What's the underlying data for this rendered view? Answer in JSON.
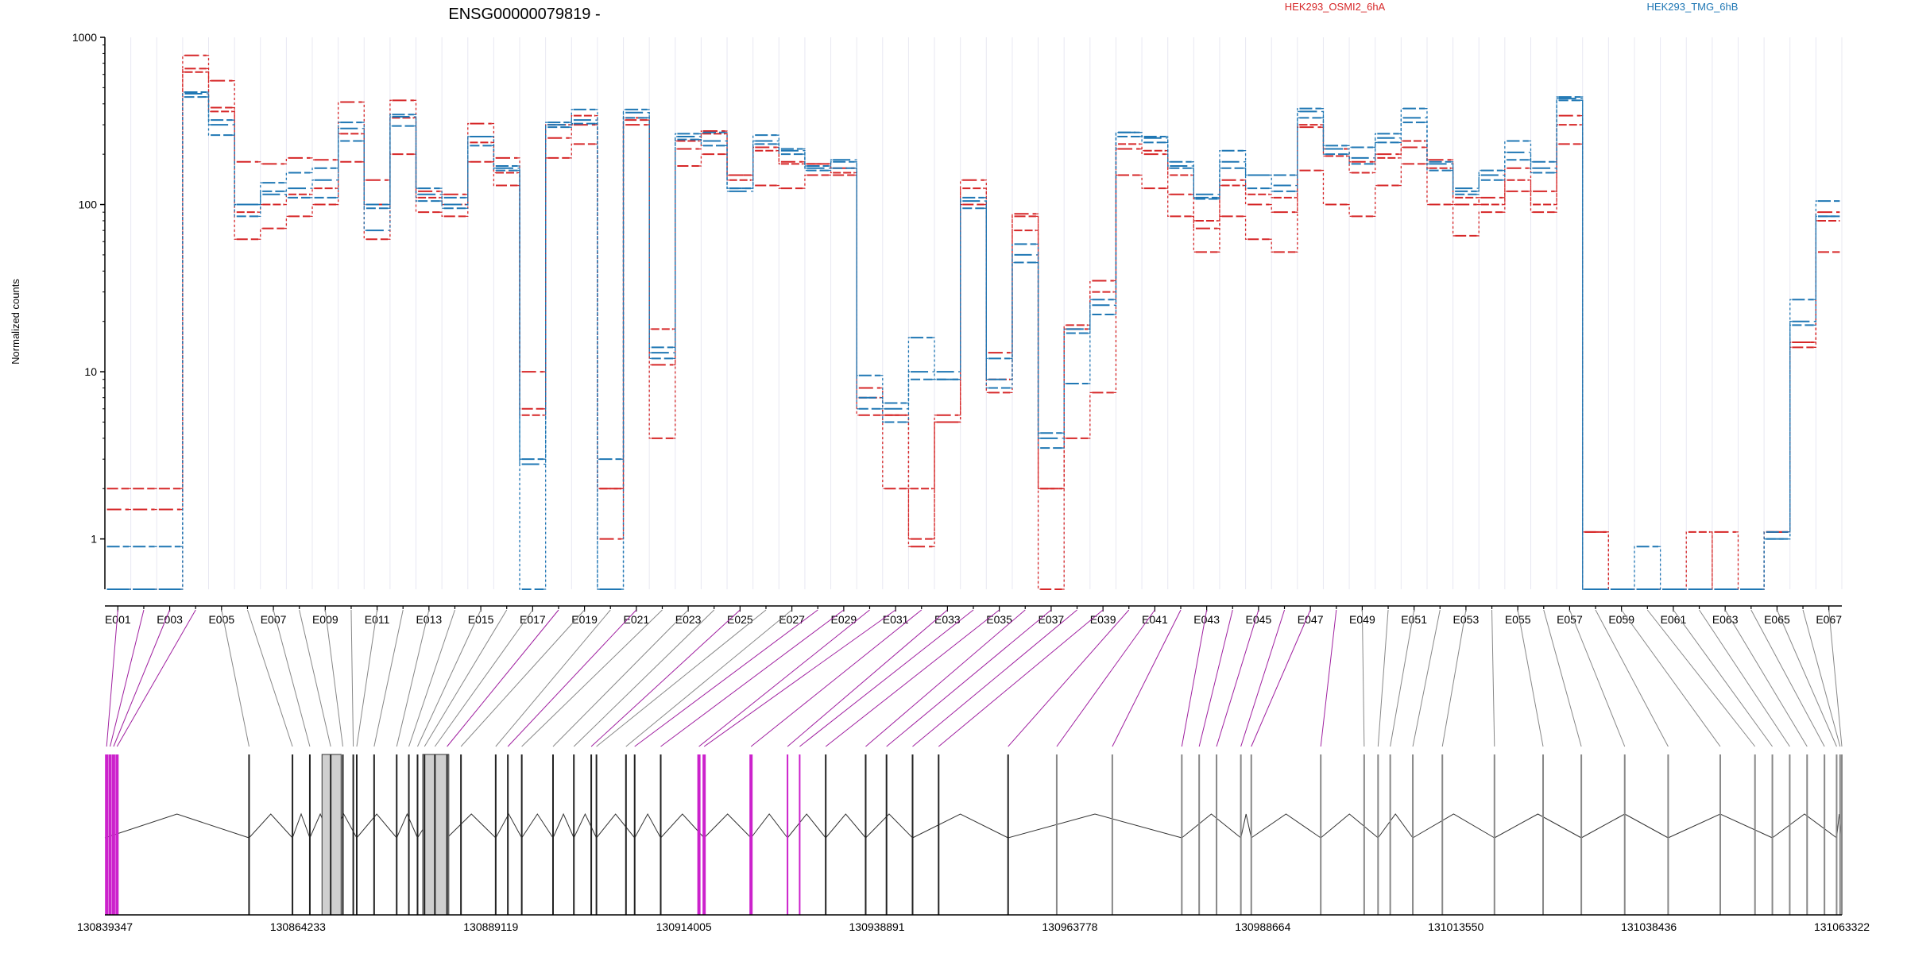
{
  "chart_data": {
    "type": "line",
    "title": "ENSG00000079819 -",
    "ylabel": "Normalized counts",
    "y_scale": "log",
    "ylim": [
      0.5,
      1000
    ],
    "y_ticks": [
      1,
      10,
      100,
      1000
    ],
    "y_tick_labels": [
      "1",
      "10",
      "100",
      "1000"
    ],
    "x_tick_labels": [
      "E001",
      "E003",
      "E005",
      "E007",
      "E009",
      "E011",
      "E013",
      "E015",
      "E017",
      "E019",
      "E021",
      "E023",
      "E025",
      "E027",
      "E029",
      "E031",
      "E033",
      "E035",
      "E037",
      "E039",
      "E041",
      "E043",
      "E045",
      "E047",
      "E049",
      "E051",
      "E053",
      "E055",
      "E057",
      "E059",
      "E061",
      "E063",
      "E065",
      "E067"
    ],
    "legend": {
      "placement": "top",
      "entries": [
        {
          "label": "HEK293_OSMI2_6hA",
          "color": "#d62728"
        },
        {
          "label": "HEK293_TMG_6hB",
          "color": "#1f77b4"
        }
      ]
    },
    "exons": [
      "E001",
      "E002",
      "E003",
      "E004",
      "E005",
      "E006",
      "E007",
      "E008",
      "E009",
      "E010",
      "E011",
      "E012",
      "E013",
      "E014",
      "E015",
      "E016",
      "E017",
      "E018",
      "E019",
      "E020",
      "E021",
      "E022",
      "E023",
      "E024",
      "E025",
      "E026",
      "E027",
      "E028",
      "E029",
      "E030",
      "E031",
      "E032",
      "E033",
      "E034",
      "E035",
      "E036",
      "E037",
      "E038",
      "E039",
      "E040",
      "E041",
      "E042",
      "E043",
      "E044",
      "E045",
      "E046",
      "E047",
      "E048",
      "E049",
      "E050",
      "E051",
      "E052",
      "E053",
      "E054",
      "E055",
      "E056",
      "E057",
      "E058",
      "E059",
      "E060",
      "E061",
      "E062",
      "E063",
      "E064",
      "E065",
      "E066",
      "E067"
    ],
    "series": [
      {
        "group": "HEK293_OSMI2_6hA",
        "color": "#d62728",
        "values": [
          2,
          2,
          2,
          650,
          380,
          62,
          72,
          85,
          100,
          180,
          62,
          200,
          90,
          85,
          180,
          130,
          6,
          190,
          230,
          2,
          320,
          4,
          170,
          200,
          150,
          130,
          125,
          150,
          150,
          5.5,
          2,
          1,
          5,
          100,
          7.5,
          85,
          0.5,
          4,
          7.5,
          150,
          125,
          85,
          52,
          85,
          62,
          52,
          160,
          100,
          85,
          130,
          175,
          100,
          65,
          90,
          120,
          90,
          230,
          1.1,
          0.5,
          0.5,
          0.5,
          0.5,
          0.5,
          0.5,
          1.1,
          14,
          52
        ]
      },
      {
        "group": "HEK293_OSMI2_6hA",
        "color": "#d62728",
        "values": [
          1.5,
          1.5,
          1.5,
          780,
          550,
          180,
          175,
          190,
          185,
          410,
          140,
          420,
          120,
          115,
          305,
          190,
          10,
          250,
          300,
          1,
          300,
          11,
          215,
          275,
          150,
          220,
          180,
          175,
          165,
          8,
          5.5,
          0.9,
          5.5,
          140,
          13,
          88,
          2,
          18,
          35,
          215,
          200,
          115,
          72,
          140,
          100,
          90,
          290,
          215,
          180,
          200,
          220,
          185,
          100,
          110,
          165,
          120,
          340,
          1.1,
          0.5,
          0.5,
          0.5,
          0.5,
          1.1,
          0.5,
          1.1,
          15,
          90
        ]
      },
      {
        "group": "HEK293_OSMI2_6hA",
        "color": "#d62728",
        "values": [
          0.5,
          0.5,
          0.5,
          620,
          360,
          90,
          100,
          115,
          125,
          265,
          100,
          330,
          110,
          100,
          235,
          155,
          5.5,
          300,
          340,
          2,
          330,
          18,
          240,
          265,
          140,
          210,
          175,
          175,
          155,
          7,
          5.5,
          2,
          5,
          125,
          9,
          70,
          2,
          19,
          30,
          230,
          210,
          150,
          80,
          130,
          115,
          110,
          300,
          195,
          155,
          190,
          240,
          165,
          110,
          100,
          140,
          100,
          300,
          0.5,
          0.5,
          0.5,
          0.5,
          1.1,
          0.5,
          0.5,
          1.1,
          15,
          80
        ]
      },
      {
        "group": "HEK293_TMG_6hB",
        "color": "#1f77b4",
        "values": [
          0.9,
          0.9,
          0.9,
          470,
          320,
          100,
          135,
          155,
          165,
          310,
          100,
          345,
          125,
          110,
          255,
          170,
          3,
          310,
          370,
          3,
          370,
          14,
          265,
          270,
          125,
          260,
          215,
          170,
          180,
          9.5,
          6.5,
          16,
          9,
          110,
          12,
          58,
          4.3,
          8.5,
          27,
          270,
          255,
          180,
          110,
          210,
          150,
          150,
          375,
          225,
          220,
          265,
          375,
          180,
          120,
          160,
          240,
          180,
          440,
          0.5,
          0.5,
          0.9,
          0.5,
          0.5,
          0.5,
          0.5,
          1.1,
          27,
          105
        ]
      },
      {
        "group": "HEK293_TMG_6hB",
        "color": "#1f77b4",
        "values": [
          0.5,
          0.5,
          0.5,
          460,
          300,
          100,
          115,
          125,
          140,
          285,
          70,
          335,
          115,
          100,
          255,
          165,
          2.8,
          300,
          320,
          0.5,
          355,
          13,
          255,
          240,
          120,
          240,
          210,
          165,
          185,
          7,
          6,
          10,
          10,
          105,
          9,
          50,
          4,
          18,
          25,
          270,
          250,
          170,
          115,
          180,
          150,
          130,
          360,
          215,
          190,
          250,
          330,
          175,
          125,
          150,
          205,
          165,
          430,
          0.5,
          0.5,
          0.5,
          0.5,
          0.5,
          0.5,
          0.5,
          1,
          20,
          85
        ]
      },
      {
        "group": "HEK293_TMG_6hB",
        "color": "#1f77b4",
        "values": [
          0.5,
          0.5,
          0.5,
          440,
          260,
          85,
          120,
          110,
          110,
          240,
          95,
          295,
          105,
          95,
          225,
          160,
          0.5,
          290,
          305,
          0.5,
          330,
          12,
          245,
          225,
          125,
          230,
          200,
          160,
          165,
          6,
          5,
          9,
          9,
          95,
          8,
          45,
          3.5,
          17,
          22,
          255,
          235,
          165,
          108,
          165,
          125,
          120,
          330,
          200,
          175,
          235,
          310,
          160,
          115,
          140,
          185,
          155,
          420,
          0.5,
          0.5,
          0.5,
          0.5,
          0.5,
          0.5,
          0.5,
          1,
          19,
          85
        ]
      }
    ],
    "gene_model": {
      "coordinate_ticks": [
        "130839347",
        "130864233",
        "130889119",
        "130914005",
        "130938891",
        "130963778",
        "130988664",
        "131013550",
        "131038436",
        "131063322"
      ]
    }
  }
}
